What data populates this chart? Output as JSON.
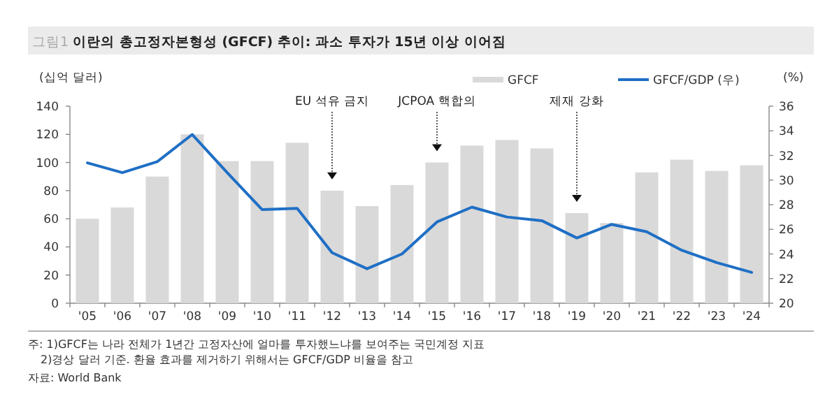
{
  "chart_data": {
    "type": "bar",
    "title": "이란의 총고정자본형성 (GFCF) 추이: 과소 투자가 15년 이상 이어짐",
    "ylabel": "(십억 달러)",
    "y2label": "(%)",
    "categories": [
      "'05",
      "'06",
      "'07",
      "'08",
      "'09",
      "'10",
      "'11",
      "'12",
      "'13",
      "'14",
      "'15",
      "'16",
      "'17",
      "'18",
      "'19",
      "'20",
      "'21",
      "'22",
      "'23",
      "'24"
    ],
    "series": [
      {
        "name": "GFCF",
        "color": "#d9d9d9",
        "values": [
          60,
          68,
          90,
          120,
          101,
          101,
          114,
          80,
          69,
          84,
          100,
          112,
          116,
          110,
          64,
          57,
          93,
          102,
          94,
          98
        ]
      },
      {
        "name": "GFCF/GDP (우)",
        "type": "line",
        "axis": "y2",
        "color": "#1f6fc5",
        "values": [
          31.4,
          30.6,
          31.5,
          33.7,
          30.6,
          27.6,
          27.7,
          24.1,
          22.8,
          24.0,
          26.6,
          27.8,
          27.0,
          26.7,
          25.3,
          26.4,
          25.8,
          24.3,
          23.3,
          22.5
        ]
      }
    ],
    "ylim": [
      0,
      140
    ],
    "yticks": [
      0,
      20,
      40,
      60,
      80,
      100,
      120,
      140
    ],
    "y2lim": [
      20,
      36
    ],
    "y2ticks": [
      20,
      22,
      24,
      26,
      28,
      30,
      32,
      34,
      36
    ],
    "legend": "top right",
    "grid": false,
    "marker": "none",
    "line_style": "solid",
    "annotations": [
      "그림1",
      {
        "text": "EU 석유 금지",
        "x": "'12"
      },
      {
        "text": "JCPOA 핵합의",
        "x": "'15"
      },
      {
        "text": "제재 강화",
        "x": "'19"
      },
      "주: 1)GFCF는 나라 전체가 1년간 고정자산에 얼마를 투자했느냐를 보여주는 국민계정 지표",
      "2)경상 달러 기준. 환율 효과를 제거하기 위해서는 GFCF/GDP 비율을 참고",
      "자료: World Bank"
    ]
  }
}
